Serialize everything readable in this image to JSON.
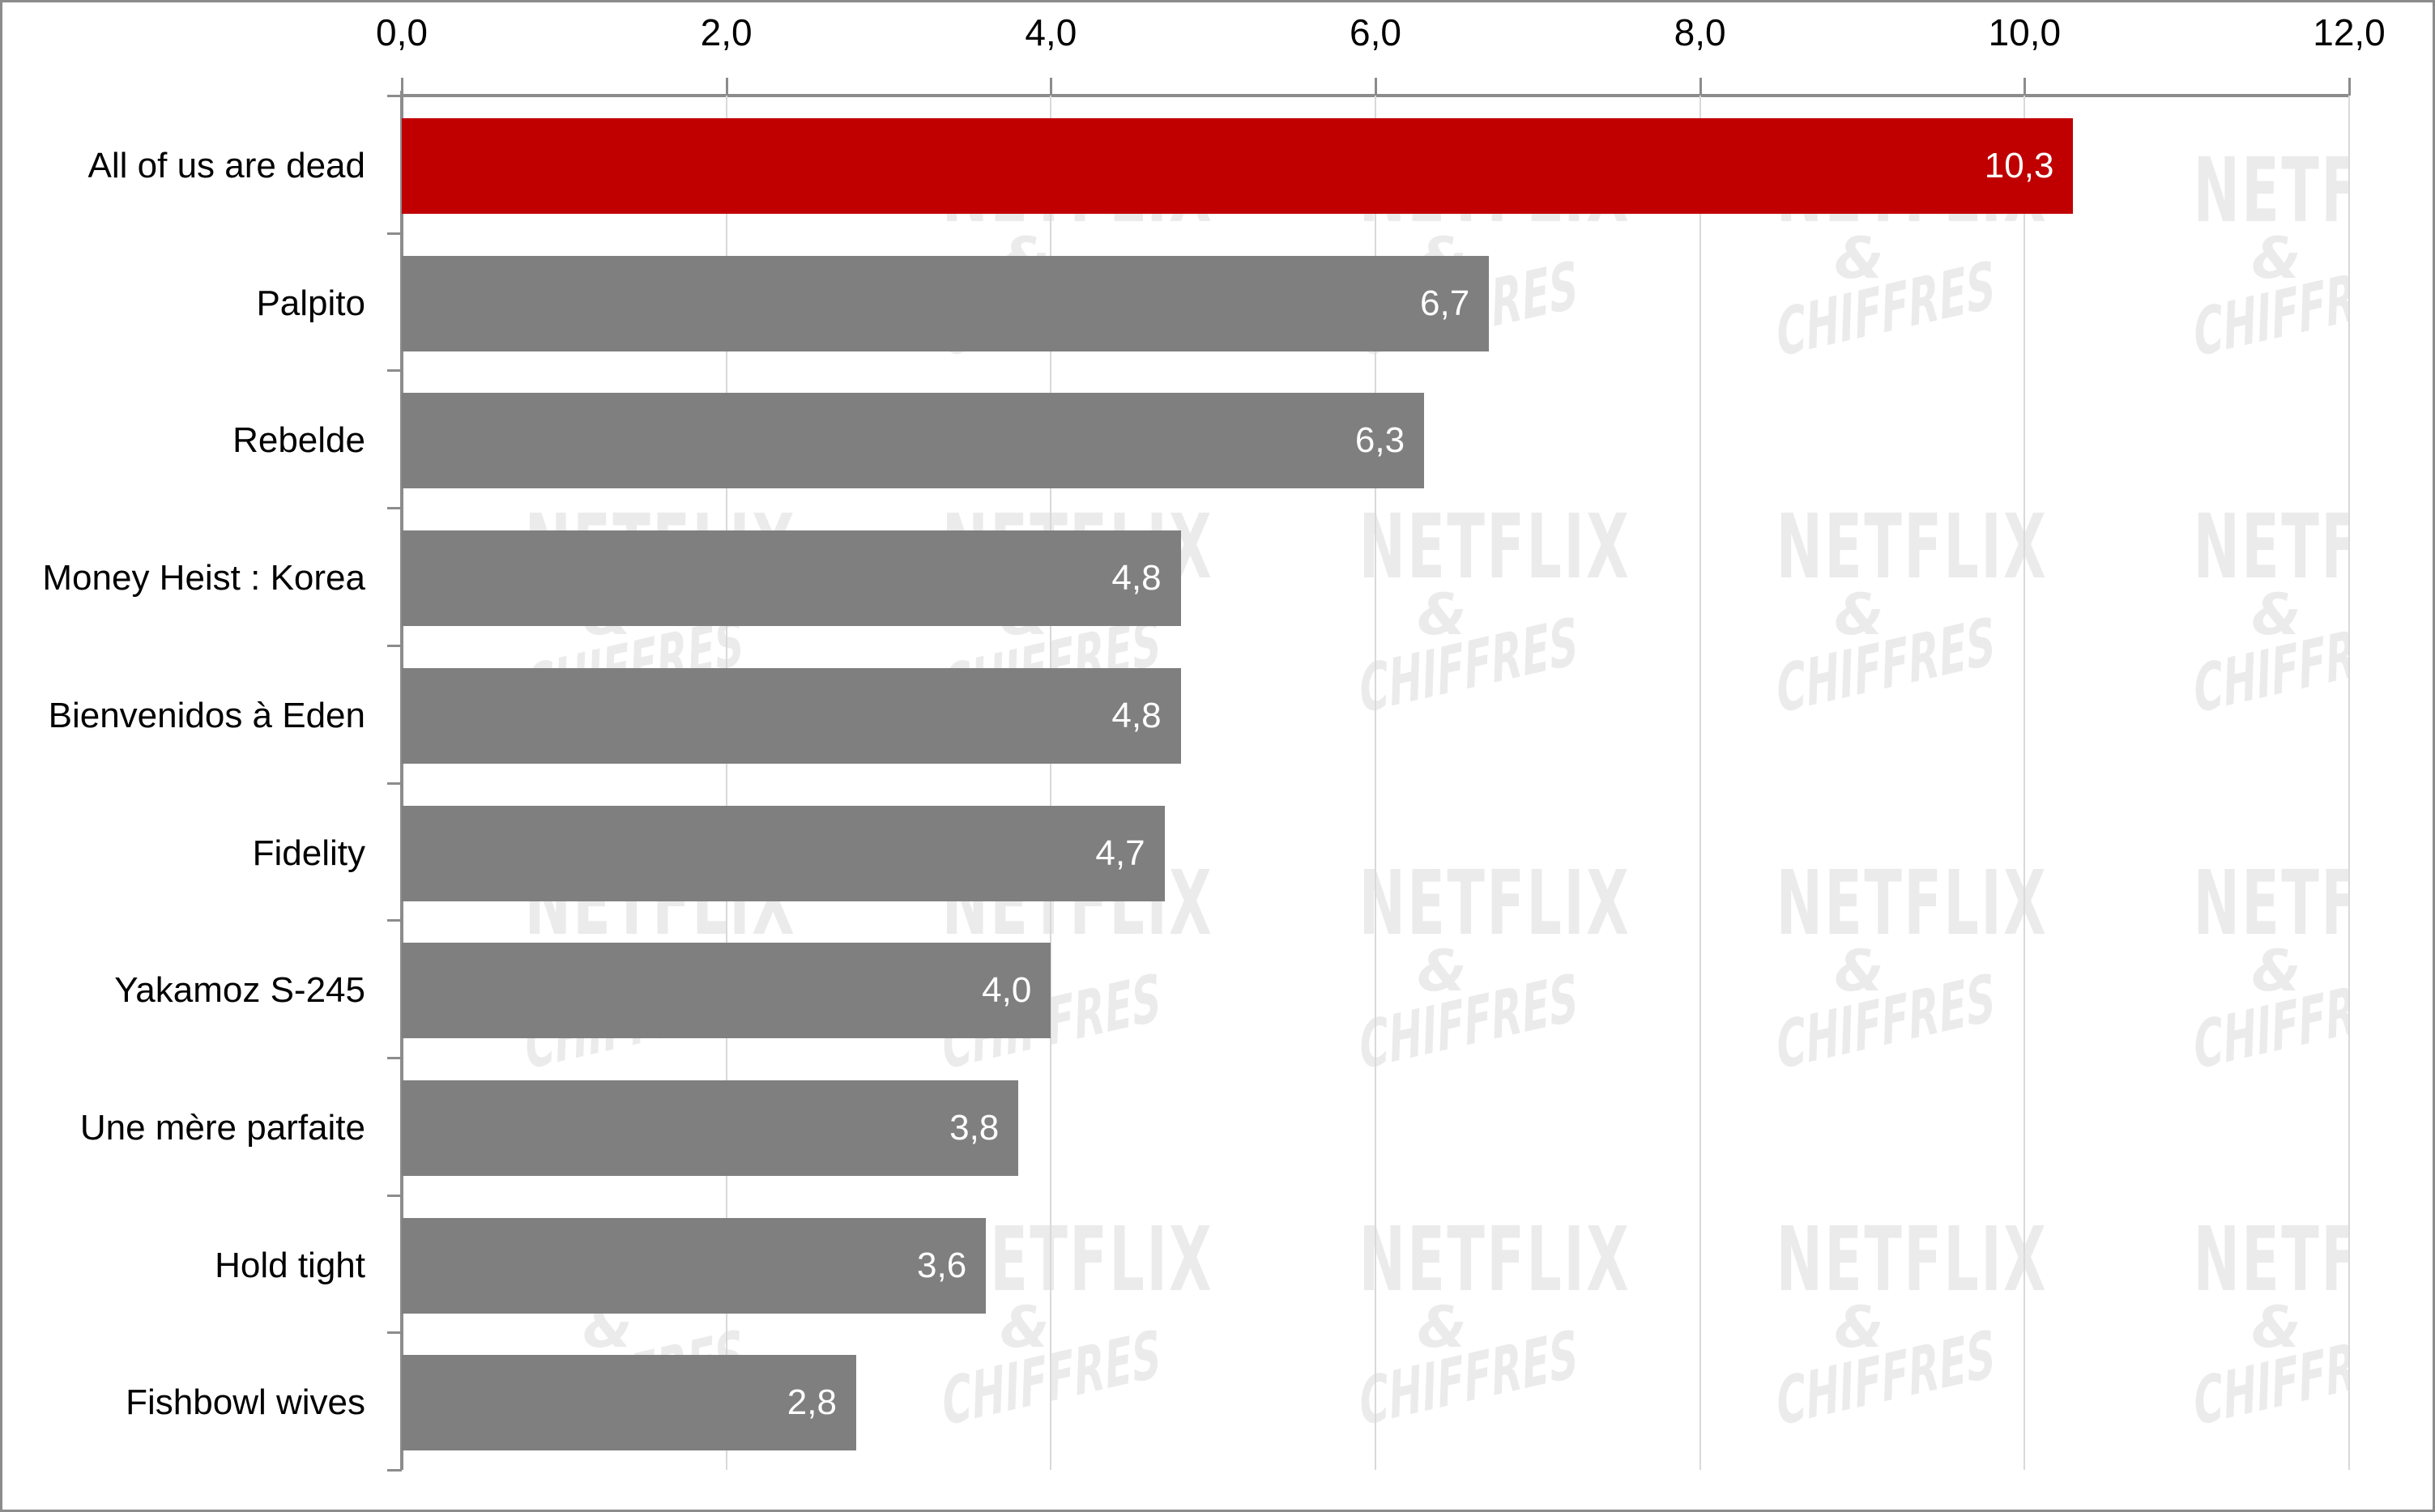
{
  "colors": {
    "highlight_bar": "#C00000",
    "default_bar": "#7F7F7F",
    "axis": "#8C8C8C",
    "gridline": "#D9D9D9",
    "watermark": "#EBEBEB"
  },
  "watermark": {
    "line1": "NETFLIX",
    "line2": "&",
    "line3": "CHIFFRES"
  },
  "axis": {
    "x_ticks": [
      "0,0",
      "2,0",
      "4,0",
      "6,0",
      "8,0",
      "10,0",
      "12,0"
    ]
  },
  "chart_data": {
    "type": "bar",
    "orientation": "horizontal",
    "title": "",
    "xlabel": "",
    "ylabel": "",
    "xlim": [
      0,
      12
    ],
    "x_tick_labels": [
      "0,0",
      "2,0",
      "4,0",
      "6,0",
      "8,0",
      "10,0",
      "12,0"
    ],
    "grid": true,
    "legend": null,
    "categories": [
      "All of us are dead",
      "Palpito",
      "Rebelde",
      "Money Heist : Korea",
      "Bienvenidos à Eden",
      "Fidelity",
      "Yakamoz S-245",
      "Une mère parfaite",
      "Hold tight",
      "Fishbowl wives"
    ],
    "values": [
      10.3,
      6.7,
      6.3,
      4.8,
      4.8,
      4.7,
      4.0,
      3.8,
      3.6,
      2.8
    ],
    "value_labels": [
      "10,3",
      "6,7",
      "6,3",
      "4,8",
      "4,8",
      "4,7",
      "4,0",
      "3,8",
      "3,6",
      "2,8"
    ],
    "highlighted_index": 0,
    "annotations": [
      "Watermark: NETFLIX & CHIFFRES"
    ]
  }
}
